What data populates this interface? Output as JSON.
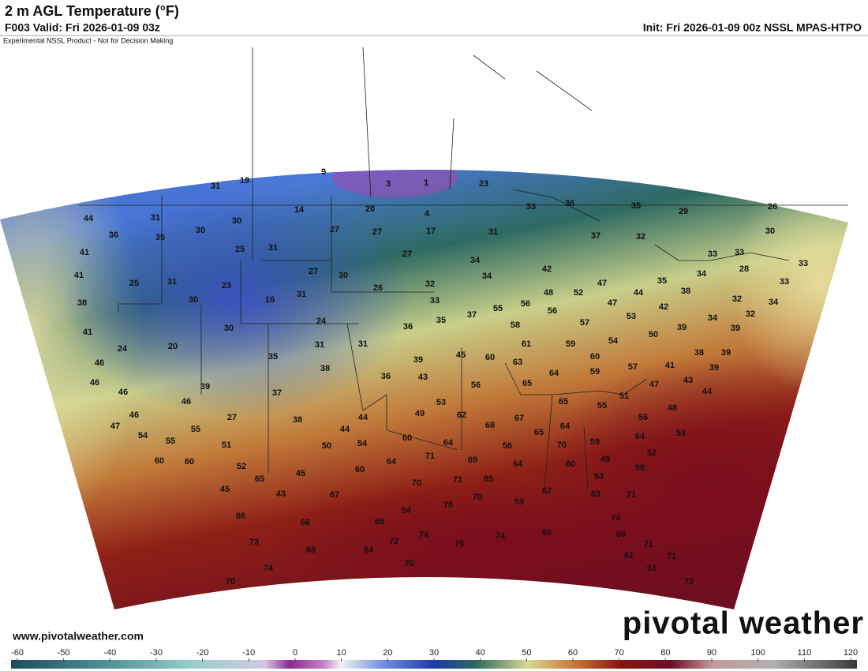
{
  "header": {
    "title": "2 m AGL Temperature (°F)",
    "valid": "F003 Valid: Fri 2026-01-09 03z",
    "init": "Init: Fri 2026-01-09 00z NSSL MPAS-HTPO",
    "disclaimer": "Experimental NSSL Product - Not for Decision Making"
  },
  "footer": {
    "url": "www.pivotalweather.com",
    "logo": "pivotal weather"
  },
  "colorbar": {
    "ticks": [
      -60,
      -50,
      -40,
      -30,
      -20,
      -10,
      0,
      10,
      20,
      30,
      40,
      50,
      60,
      70,
      80,
      90,
      100,
      110,
      120
    ]
  },
  "map": {
    "labels": [
      9,
      3,
      1,
      31,
      19,
      23,
      14,
      20,
      4,
      33,
      36,
      35,
      29,
      26,
      44,
      31,
      30,
      27,
      27,
      17,
      31,
      37,
      32,
      30,
      36,
      35,
      30,
      25,
      31,
      27,
      34,
      33,
      33,
      33,
      41,
      41,
      25,
      31,
      23,
      27,
      30,
      26,
      32,
      34,
      42,
      35,
      34,
      28,
      33,
      38,
      30,
      16,
      31,
      33,
      55,
      56,
      48,
      52,
      47,
      44,
      47,
      38,
      42,
      32,
      34,
      37,
      35,
      24,
      58,
      56,
      57,
      53,
      34,
      32,
      39,
      41,
      30,
      36,
      50,
      39,
      61,
      59,
      54,
      24,
      20,
      31,
      31,
      45,
      60,
      39,
      63,
      60,
      38,
      39,
      46,
      35,
      38,
      64,
      59,
      57,
      41,
      39,
      36,
      43,
      65,
      43,
      47,
      44,
      46,
      46,
      39,
      37,
      56,
      65,
      51,
      55,
      46,
      53,
      44,
      49,
      27,
      38,
      62,
      67,
      68,
      64,
      46,
      55,
      44,
      56,
      48,
      47,
      54,
      65,
      59,
      64,
      53,
      55,
      60,
      64,
      54,
      50,
      51,
      70,
      56,
      52,
      60,
      60,
      64,
      71,
      69,
      64,
      60,
      49,
      52,
      60,
      50,
      45,
      65,
      70,
      71,
      65,
      53,
      45,
      43,
      67,
      62,
      63,
      71,
      70,
      70,
      59,
      66,
      65,
      54,
      66,
      74,
      72,
      74,
      75,
      74,
      60,
      73,
      54,
      68,
      68,
      71,
      61,
      74,
      70,
      71,
      61,
      70,
      72
    ]
  }
}
